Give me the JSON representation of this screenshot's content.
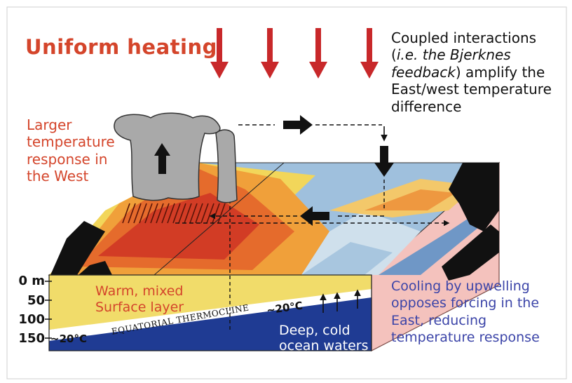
{
  "title": "Uniform heating",
  "coupled": {
    "line1": "Coupled interactions",
    "line2_open": "(",
    "line2_italic": "i.e. the Bjerknes",
    "line3_italic": "feedback",
    "line3_rest": ") amplify the",
    "line4": "East/west temperature",
    "line5": "difference"
  },
  "larger": {
    "line1": "Larger",
    "line2": "temperature",
    "line3": "response in",
    "line4": "the West"
  },
  "warm": {
    "line1": "Warm, mixed",
    "line2": "Surface layer"
  },
  "cooling": {
    "line1": "Cooling by upwelling",
    "line2": "opposes forcing in the",
    "line3": "East, reducing",
    "line4": "temperature response"
  },
  "deep": {
    "line1": "Deep, cold",
    "line2": "ocean waters"
  },
  "depth_labels": {
    "d0": "0 m",
    "d50": "50",
    "d100": "100",
    "d150": "150"
  },
  "isotherm_west": "~20°C",
  "isotherm_east": "~20°C",
  "thermocline_label": "EQUATORIAL THERMOCLINE",
  "colors": {
    "accent_red": "#d4452b",
    "accent_blue": "#3b44a8",
    "warm_layer": "#f1dc6a",
    "deep_water": "#1f3b93",
    "arrow_red": "#c8282a"
  }
}
